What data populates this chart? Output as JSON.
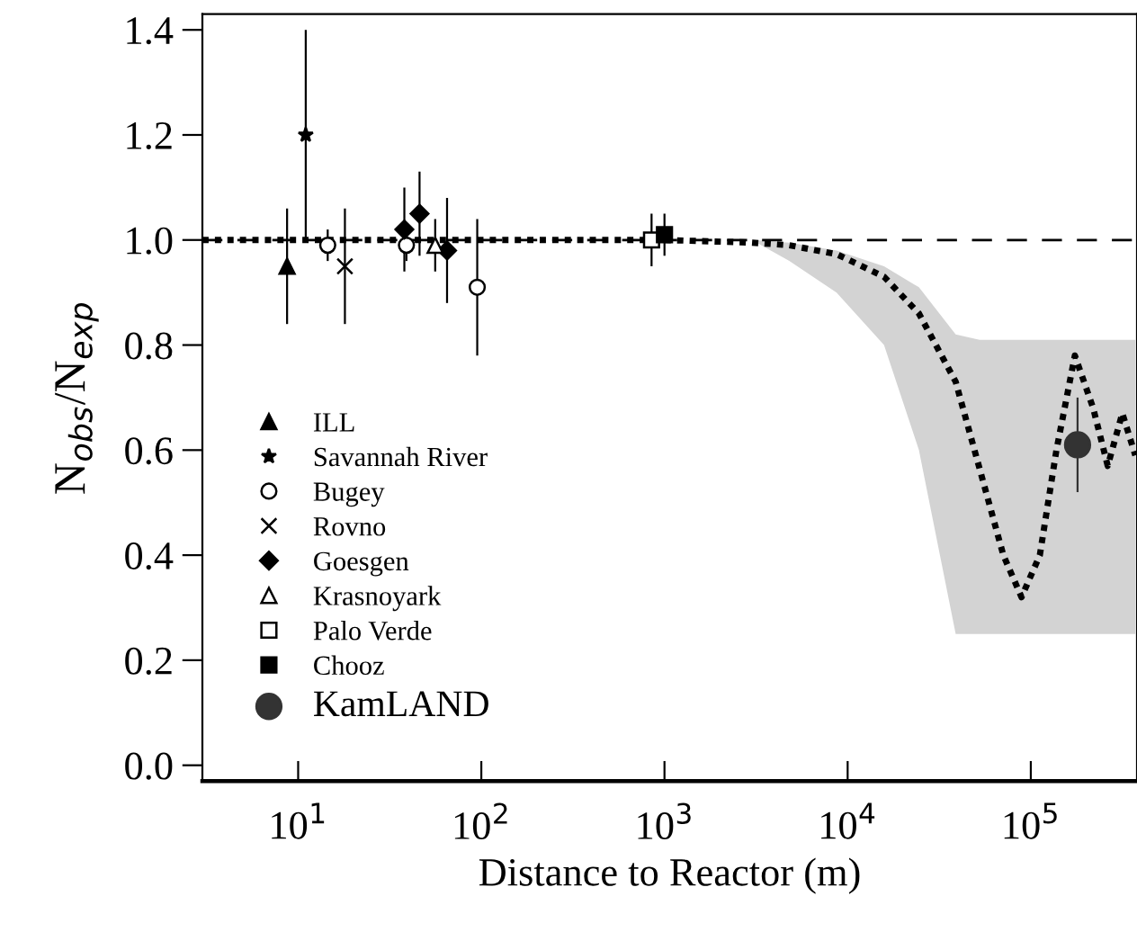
{
  "chart_data": {
    "type": "scatter",
    "xlabel": "Distance to Reactor (m)",
    "ylabel": "N$_{obs}$/N$_{exp}$",
    "log": "x",
    "xlim": [
      3,
      380000
    ],
    "ylim": [
      -0.03,
      1.43
    ],
    "xticks": [
      {
        "value": 10,
        "label": "10$^{1}$"
      },
      {
        "value": 100,
        "label": "10$^{2}$"
      },
      {
        "value": 1000,
        "label": "10$^{3}$"
      },
      {
        "value": 10000,
        "label": "10$^{4}$"
      },
      {
        "value": 100000,
        "label": "10$^{5}$"
      }
    ],
    "yticks": [
      {
        "value": 0,
        "label": "0.0"
      },
      {
        "value": 0.2,
        "label": "0.2"
      },
      {
        "value": 0.4,
        "label": "0.4"
      },
      {
        "value": 0.6,
        "label": "0.6"
      },
      {
        "value": 0.8,
        "label": "0.8"
      },
      {
        "value": 1,
        "label": "1.0"
      },
      {
        "value": 1.2,
        "label": "1.2"
      },
      {
        "value": 1.4,
        "label": "1.4"
      }
    ],
    "grid": false,
    "legend": "bottom left",
    "ref_lines": [
      {
        "axis": "y",
        "value": 1,
        "label": null,
        "color": "#000000",
        "line_style": "dashed"
      }
    ],
    "series": [
      {
        "type": "line",
        "color": "#000000",
        "line_style": "dotted",
        "marker": "none",
        "x": [
          3,
          1000,
          3000,
          4800,
          8700,
          15800,
          24500,
          38900,
          52500,
          70800,
          89000,
          112000,
          138000,
          174000,
          219000,
          263000,
          316000,
          372000
        ],
        "values": [
          1.0,
          1.0,
          0.995,
          0.99,
          0.973,
          0.93,
          0.86,
          0.73,
          0.565,
          0.4,
          0.32,
          0.4,
          0.6,
          0.78,
          0.68,
          0.57,
          0.67,
          0.59
        ],
        "lower": [
          1.0,
          1.0,
          1.0,
          0.96,
          0.9,
          0.8,
          0.6,
          0.25,
          0.25,
          0.25,
          0.25,
          0.25,
          0.25,
          0.25,
          0.25,
          0.25,
          0.25,
          0.25
        ],
        "upper": [
          1.0,
          1.0,
          1.0,
          0.995,
          0.98,
          0.95,
          0.91,
          0.82,
          0.81,
          0.81,
          0.81,
          0.81,
          0.81,
          0.81,
          0.81,
          0.81,
          0.81,
          0.81
        ]
      },
      {
        "name": "ILL",
        "color": "#000000",
        "marker": "triangle",
        "x": [
          8.7
        ],
        "values": [
          0.95
        ],
        "errors": [
          0.11
        ]
      },
      {
        "name": "Savannah River",
        "color": "#000000",
        "marker": "star",
        "x": [
          11
        ],
        "values": [
          1.2
        ],
        "errors": [
          0.2
        ]
      },
      {
        "name": "Bugey",
        "color": "#000000",
        "marker": "circle",
        "x": [
          14.5,
          39,
          95
        ],
        "values": [
          0.99,
          0.99,
          0.91
        ],
        "errors": [
          0.03,
          0.03,
          0.13
        ]
      },
      {
        "name": "Rovno",
        "color": "#000000",
        "marker": "cross",
        "x": [
          18
        ],
        "values": [
          0.95
        ],
        "errors": [
          0.11
        ]
      },
      {
        "name": "Goesgen",
        "color": "#000000",
        "marker": "diamond",
        "x": [
          38,
          46,
          65
        ],
        "values": [
          1.02,
          1.05,
          0.98
        ],
        "errors": [
          0.08,
          0.08,
          0.1
        ]
      },
      {
        "name": "Krasnoyark",
        "color": "#000000",
        "marker": "triangle",
        "x": [
          56
        ],
        "values": [
          0.99
        ],
        "errors": [
          0.05
        ]
      },
      {
        "name": "Palo Verde",
        "color": "#000000",
        "marker": "square",
        "x": [
          850
        ],
        "values": [
          1.0
        ],
        "errors": [
          0.05
        ]
      },
      {
        "name": "Chooz",
        "color": "#000000",
        "marker": "square",
        "x": [
          1000
        ],
        "values": [
          1.01
        ],
        "errors": [
          0.04
        ]
      },
      {
        "name": "KamLAND",
        "color": "#333333",
        "marker": "circle",
        "x": [
          180000
        ],
        "values": [
          0.61
        ],
        "errors": [
          0.09
        ]
      }
    ]
  }
}
